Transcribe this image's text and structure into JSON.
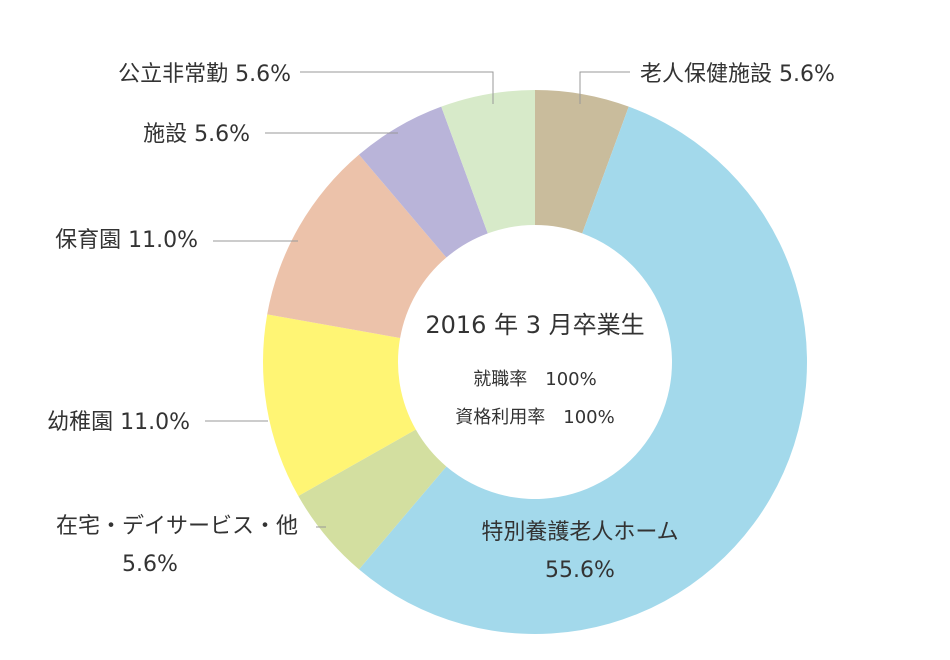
{
  "chart_data": {
    "type": "donut",
    "categories": [
      "老人保健施設",
      "特別養護老人ホーム",
      "在宅・デイサービス・他",
      "幼稚園",
      "保育園",
      "施設",
      "公立非常勤"
    ],
    "values": [
      5.6,
      55.6,
      5.6,
      11.0,
      11.0,
      5.6,
      5.6
    ],
    "value_labels": [
      "5.6%",
      "55.6%",
      "5.6%",
      "11.0%",
      "11.0%",
      "5.6%",
      "5.6%"
    ],
    "colors": [
      "#c9bc9c",
      "#a3d9eb",
      "#d3dfa0",
      "#fff574",
      "#ecc2aa",
      "#b9b4d9",
      "#d7eac9"
    ],
    "center_text": [
      "2016 年 3 月卒業生",
      "就職率　100%",
      "資格利用率　100%"
    ]
  }
}
